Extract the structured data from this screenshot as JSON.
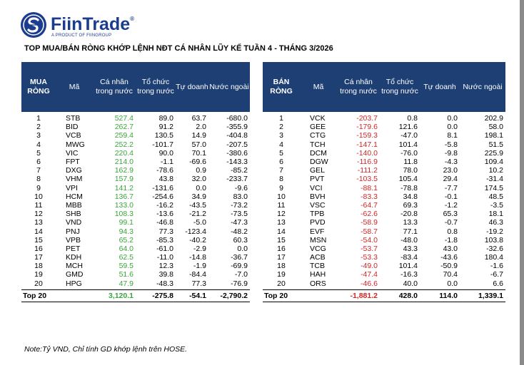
{
  "brand": {
    "name": "FiinTrade",
    "registered": "®",
    "tagline": "A PRODUCT OF FIINGROUP"
  },
  "title": "TOP MUA/BÁN RÒNG KHỚP LỆNH NĐT CÁ NHÂN LŨY KẾ TUẦN 4 - THÁNG 3/2026",
  "colors": {
    "header": "#1e3f73",
    "positive": "#3aa63a",
    "negative": "#d32626",
    "brand": "#1b3c8f"
  },
  "buy_table": {
    "headers": [
      "MUA RÒNG",
      "Mã",
      "Cá nhân trong nước",
      "Tổ chức trong nước",
      "Tự doanh",
      "Nước ngoài"
    ],
    "rows": [
      {
        "rank": "1",
        "ticker": "STB",
        "ca_nhan": "527.4",
        "to_chuc": "89.0",
        "tu_doanh": "63.7",
        "nuoc_ngoai": "-680.0"
      },
      {
        "rank": "2",
        "ticker": "BID",
        "ca_nhan": "262.7",
        "to_chuc": "91.2",
        "tu_doanh": "2.0",
        "nuoc_ngoai": "-355.9"
      },
      {
        "rank": "3",
        "ticker": "VCB",
        "ca_nhan": "259.4",
        "to_chuc": "130.5",
        "tu_doanh": "14.9",
        "nuoc_ngoai": "-404.8"
      },
      {
        "rank": "4",
        "ticker": "MWG",
        "ca_nhan": "252.2",
        "to_chuc": "-101.7",
        "tu_doanh": "57.0",
        "nuoc_ngoai": "-207.5"
      },
      {
        "rank": "5",
        "ticker": "VIC",
        "ca_nhan": "220.4",
        "to_chuc": "90.0",
        "tu_doanh": "70.1",
        "nuoc_ngoai": "-380.6"
      },
      {
        "rank": "6",
        "ticker": "FPT",
        "ca_nhan": "214.0",
        "to_chuc": "-1.1",
        "tu_doanh": "-69.6",
        "nuoc_ngoai": "-143.3"
      },
      {
        "rank": "7",
        "ticker": "DXG",
        "ca_nhan": "162.9",
        "to_chuc": "-78.6",
        "tu_doanh": "0.9",
        "nuoc_ngoai": "-85.2"
      },
      {
        "rank": "8",
        "ticker": "VHM",
        "ca_nhan": "157.9",
        "to_chuc": "43.8",
        "tu_doanh": "32.0",
        "nuoc_ngoai": "-233.7"
      },
      {
        "rank": "9",
        "ticker": "VPI",
        "ca_nhan": "141.2",
        "to_chuc": "-131.6",
        "tu_doanh": "0.0",
        "nuoc_ngoai": "-9.6"
      },
      {
        "rank": "10",
        "ticker": "HCM",
        "ca_nhan": "136.7",
        "to_chuc": "-254.6",
        "tu_doanh": "34.9",
        "nuoc_ngoai": "83.0"
      },
      {
        "rank": "11",
        "ticker": "MBB",
        "ca_nhan": "133.0",
        "to_chuc": "-16.2",
        "tu_doanh": "-43.5",
        "nuoc_ngoai": "-73.2"
      },
      {
        "rank": "12",
        "ticker": "SHB",
        "ca_nhan": "108.3",
        "to_chuc": "-13.6",
        "tu_doanh": "-21.2",
        "nuoc_ngoai": "-73.5"
      },
      {
        "rank": "13",
        "ticker": "VND",
        "ca_nhan": "99.1",
        "to_chuc": "-46.8",
        "tu_doanh": "-5.0",
        "nuoc_ngoai": "-47.3"
      },
      {
        "rank": "14",
        "ticker": "PNJ",
        "ca_nhan": "94.3",
        "to_chuc": "77.3",
        "tu_doanh": "-123.4",
        "nuoc_ngoai": "-48.2"
      },
      {
        "rank": "15",
        "ticker": "VPB",
        "ca_nhan": "65.2",
        "to_chuc": "-85.3",
        "tu_doanh": "-40.2",
        "nuoc_ngoai": "60.3"
      },
      {
        "rank": "16",
        "ticker": "PET",
        "ca_nhan": "64.0",
        "to_chuc": "-61.0",
        "tu_doanh": "-2.9",
        "nuoc_ngoai": "0.0"
      },
      {
        "rank": "17",
        "ticker": "KDH",
        "ca_nhan": "62.5",
        "to_chuc": "-11.0",
        "tu_doanh": "-14.8",
        "nuoc_ngoai": "-36.7"
      },
      {
        "rank": "18",
        "ticker": "MCH",
        "ca_nhan": "59.5",
        "to_chuc": "12.3",
        "tu_doanh": "-1.9",
        "nuoc_ngoai": "-69.9"
      },
      {
        "rank": "19",
        "ticker": "GMD",
        "ca_nhan": "51.6",
        "to_chuc": "39.8",
        "tu_doanh": "-84.4",
        "nuoc_ngoai": "-7.0"
      },
      {
        "rank": "20",
        "ticker": "HPG",
        "ca_nhan": "47.9",
        "to_chuc": "-48.3",
        "tu_doanh": "77.3",
        "nuoc_ngoai": "-76.9"
      }
    ],
    "total": {
      "label": "Top 20",
      "ca_nhan": "3,120.1",
      "to_chuc": "-275.8",
      "tu_doanh": "-54.1",
      "nuoc_ngoai": "-2,790.2"
    }
  },
  "sell_table": {
    "headers": [
      "BÁN RÒNG",
      "Mã",
      "Cá nhân trong nước",
      "Tổ chức trong nước",
      "Tự doanh",
      "Nước ngoài"
    ],
    "rows": [
      {
        "rank": "1",
        "ticker": "VCK",
        "ca_nhan": "-203.7",
        "to_chuc": "0.8",
        "tu_doanh": "0.0",
        "nuoc_ngoai": "202.9"
      },
      {
        "rank": "2",
        "ticker": "GEE",
        "ca_nhan": "-179.6",
        "to_chuc": "121.6",
        "tu_doanh": "0.0",
        "nuoc_ngoai": "58.0"
      },
      {
        "rank": "3",
        "ticker": "CTG",
        "ca_nhan": "-159.3",
        "to_chuc": "-47.0",
        "tu_doanh": "8.1",
        "nuoc_ngoai": "198.1"
      },
      {
        "rank": "4",
        "ticker": "TCH",
        "ca_nhan": "-147.1",
        "to_chuc": "101.4",
        "tu_doanh": "-5.8",
        "nuoc_ngoai": "51.5"
      },
      {
        "rank": "5",
        "ticker": "DCM",
        "ca_nhan": "-140.0",
        "to_chuc": "-76.0",
        "tu_doanh": "-9.8",
        "nuoc_ngoai": "225.9"
      },
      {
        "rank": "6",
        "ticker": "DGW",
        "ca_nhan": "-116.9",
        "to_chuc": "11.8",
        "tu_doanh": "-4.3",
        "nuoc_ngoai": "109.4"
      },
      {
        "rank": "7",
        "ticker": "GEL",
        "ca_nhan": "-111.2",
        "to_chuc": "78.0",
        "tu_doanh": "23.0",
        "nuoc_ngoai": "10.2"
      },
      {
        "rank": "8",
        "ticker": "PVT",
        "ca_nhan": "-103.5",
        "to_chuc": "105.4",
        "tu_doanh": "29.4",
        "nuoc_ngoai": "-31.4"
      },
      {
        "rank": "9",
        "ticker": "VCI",
        "ca_nhan": "-88.1",
        "to_chuc": "-78.8",
        "tu_doanh": "-7.7",
        "nuoc_ngoai": "174.5"
      },
      {
        "rank": "10",
        "ticker": "BVH",
        "ca_nhan": "-83.3",
        "to_chuc": "34.8",
        "tu_doanh": "-0.1",
        "nuoc_ngoai": "48.5"
      },
      {
        "rank": "11",
        "ticker": "VSC",
        "ca_nhan": "-64.7",
        "to_chuc": "69.3",
        "tu_doanh": "-1.2",
        "nuoc_ngoai": "-3.5"
      },
      {
        "rank": "12",
        "ticker": "TPB",
        "ca_nhan": "-62.6",
        "to_chuc": "-20.8",
        "tu_doanh": "65.3",
        "nuoc_ngoai": "18.1"
      },
      {
        "rank": "13",
        "ticker": "PVD",
        "ca_nhan": "-58.9",
        "to_chuc": "13.3",
        "tu_doanh": "-0.7",
        "nuoc_ngoai": "46.3"
      },
      {
        "rank": "14",
        "ticker": "EVF",
        "ca_nhan": "-58.7",
        "to_chuc": "77.1",
        "tu_doanh": "0.8",
        "nuoc_ngoai": "-19.2"
      },
      {
        "rank": "15",
        "ticker": "MSN",
        "ca_nhan": "-54.0",
        "to_chuc": "-48.0",
        "tu_doanh": "-1.8",
        "nuoc_ngoai": "103.8"
      },
      {
        "rank": "16",
        "ticker": "VCG",
        "ca_nhan": "-53.7",
        "to_chuc": "43.3",
        "tu_doanh": "43.0",
        "nuoc_ngoai": "-32.6"
      },
      {
        "rank": "17",
        "ticker": "ACB",
        "ca_nhan": "-53.3",
        "to_chuc": "-83.4",
        "tu_doanh": "-43.6",
        "nuoc_ngoai": "180.4"
      },
      {
        "rank": "18",
        "ticker": "TCB",
        "ca_nhan": "-49.0",
        "to_chuc": "101.4",
        "tu_doanh": "-50.9",
        "nuoc_ngoai": "-1.6"
      },
      {
        "rank": "19",
        "ticker": "HAH",
        "ca_nhan": "-47.4",
        "to_chuc": "-16.3",
        "tu_doanh": "70.4",
        "nuoc_ngoai": "-6.7"
      },
      {
        "rank": "20",
        "ticker": "ORS",
        "ca_nhan": "-46.6",
        "to_chuc": "40.0",
        "tu_doanh": "0.0",
        "nuoc_ngoai": "6.6"
      }
    ],
    "total": {
      "label": "Top 20",
      "ca_nhan": "-1,881.2",
      "to_chuc": "428.0",
      "tu_doanh": "114.0",
      "nuoc_ngoai": "1,339.1"
    }
  },
  "note": "Note:Tỷ VND,  Chỉ tính GD khớp lệnh trên HOSE."
}
